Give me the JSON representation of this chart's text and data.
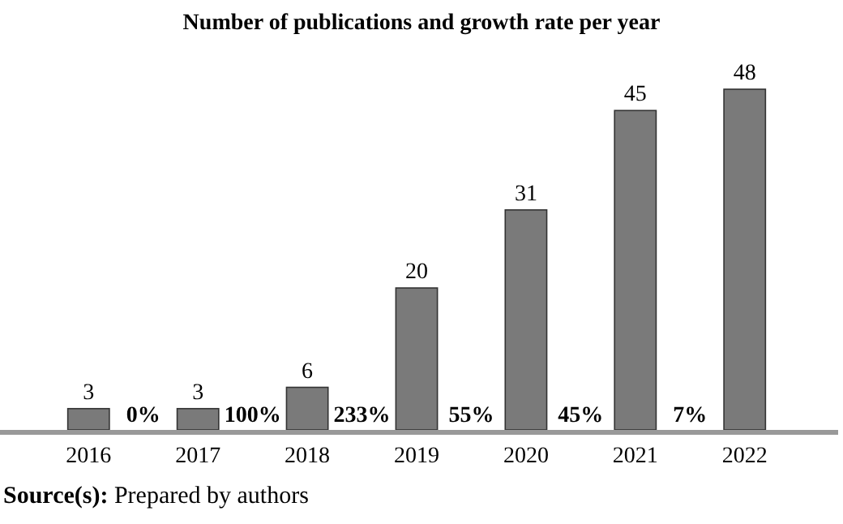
{
  "chart_data": {
    "type": "bar",
    "title": "Number of publications and growth rate per year",
    "categories": [
      "2016",
      "2017",
      "2018",
      "2019",
      "2020",
      "2021",
      "2022"
    ],
    "values": [
      3,
      3,
      6,
      20,
      31,
      45,
      48
    ],
    "color": "#7a7a7a",
    "data_labels": true,
    "annotations": [
      "0%",
      "100%",
      "233%",
      "55%",
      "45%",
      "7%",
      "Source(s): Prepared by authors"
    ]
  }
}
